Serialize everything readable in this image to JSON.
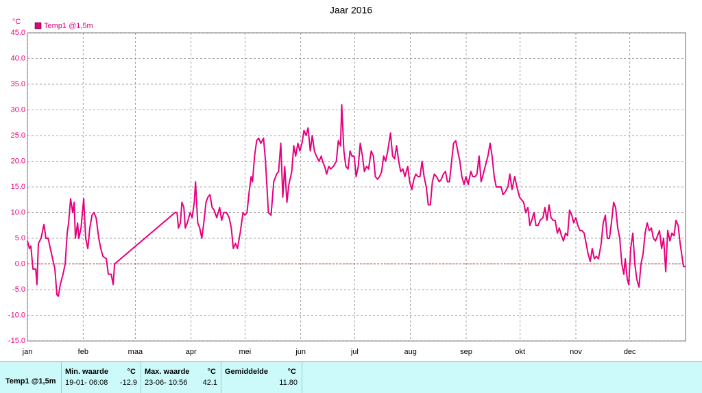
{
  "chart_data": {
    "type": "line",
    "title": "Jaar 2016",
    "y_unit": "°C",
    "xlim": [
      0,
      366
    ],
    "ylim": [
      -15,
      45
    ],
    "xticks": [
      {
        "value": 0,
        "label": "jan"
      },
      {
        "value": 31,
        "label": "feb"
      },
      {
        "value": 60,
        "label": "maa"
      },
      {
        "value": 91,
        "label": "apr"
      },
      {
        "value": 121,
        "label": "mei"
      },
      {
        "value": 152,
        "label": "jun"
      },
      {
        "value": 182,
        "label": "jul"
      },
      {
        "value": 213,
        "label": "aug"
      },
      {
        "value": 244,
        "label": "sep"
      },
      {
        "value": 274,
        "label": "okt"
      },
      {
        "value": 305,
        "label": "nov"
      },
      {
        "value": 335,
        "label": "dec"
      }
    ],
    "yticks": [
      {
        "value": -15,
        "label": "-15.0"
      },
      {
        "value": -10,
        "label": "-10.0"
      },
      {
        "value": -5,
        "label": "-5.0"
      },
      {
        "value": 0,
        "label": "0.0"
      },
      {
        "value": 5,
        "label": "5.0"
      },
      {
        "value": 10,
        "label": "10.0"
      },
      {
        "value": 15,
        "label": "15.0"
      },
      {
        "value": 20,
        "label": "20.0"
      },
      {
        "value": 25,
        "label": "25.0"
      },
      {
        "value": 30,
        "label": "30.0"
      },
      {
        "value": 35,
        "label": "35.0"
      },
      {
        "value": 40,
        "label": "40.0"
      },
      {
        "value": 45,
        "label": "45.0"
      }
    ],
    "grid": true,
    "reference_line": {
      "value": 0,
      "color": "#cc0000"
    },
    "x": [
      0,
      1.1,
      1.9,
      3.1,
      4.6,
      5.3,
      6.1,
      7.6,
      9.2,
      10.3,
      11.5,
      13.4,
      15.3,
      16.4,
      17.2,
      18.3,
      19.8,
      21.0,
      22.1,
      22.9,
      24.0,
      25.2,
      26.0,
      26.7,
      27.9,
      28.6,
      29.8,
      31.3,
      32.4,
      33.6,
      34.7,
      35.9,
      37.0,
      38.2,
      39.7,
      40.8,
      42.0,
      43.9,
      45.0,
      46.6,
      47.7,
      48.5,
      82.1,
      83.2,
      84.0,
      85.1,
      85.9,
      87.0,
      87.8,
      88.9,
      90.5,
      91.6,
      92.8,
      93.5,
      94.7,
      95.8,
      97.0,
      98.1,
      99.3,
      100.4,
      101.5,
      102.7,
      103.8,
      105.3,
      106.9,
      108.0,
      109.2,
      110.7,
      112.2,
      113.4,
      114.5,
      115.7,
      116.8,
      118.3,
      119.9,
      121.0,
      122.1,
      123.3,
      124.4,
      125.2,
      126.3,
      127.5,
      128.6,
      129.8,
      131.3,
      132.4,
      134.0,
      135.5,
      137.0,
      138.6,
      139.7,
      140.9,
      142.0,
      143.1,
      144.3,
      145.4,
      147.0,
      148.1,
      149.2,
      150.4,
      151.5,
      152.7,
      153.8,
      155.0,
      156.1,
      157.3,
      158.4,
      159.6,
      160.7,
      162.2,
      163.4,
      164.1,
      165.3,
      166.4,
      167.6,
      168.7,
      170.2,
      171.8,
      172.9,
      174.1,
      174.8,
      176.0,
      177.1,
      178.3,
      179.4,
      180.5,
      181.7,
      182.8,
      184.0,
      185.1,
      186.3,
      187.4,
      188.6,
      189.7,
      191.2,
      192.4,
      193.5,
      194.7,
      195.8,
      197.0,
      198.1,
      199.2,
      200.4,
      201.9,
      203.1,
      204.2,
      205.3,
      206.5,
      207.6,
      208.8,
      209.9,
      211.5,
      212.6,
      213.8,
      214.9,
      216.0,
      217.2,
      218.3,
      219.5,
      220.6,
      221.8,
      222.9,
      224.1,
      225.2,
      226.3,
      227.5,
      229.0,
      230.2,
      231.3,
      232.5,
      233.6,
      234.7,
      235.9,
      237.0,
      238.2,
      239.3,
      240.5,
      241.6,
      242.8,
      243.9,
      245.1,
      246.6,
      247.7,
      248.9,
      250.0,
      251.2,
      252.3,
      253.5,
      254.6,
      256.1,
      257.3,
      258.4,
      259.6,
      260.7,
      262.2,
      263.4,
      264.5,
      265.7,
      267.2,
      268.3,
      269.5,
      271.0,
      272.2,
      273.7,
      274.8,
      276.0,
      277.1,
      278.3,
      279.4,
      280.5,
      281.7,
      282.8,
      284.0,
      285.1,
      286.7,
      287.8,
      288.9,
      290.1,
      291.2,
      292.4,
      293.5,
      294.7,
      295.8,
      297.0,
      298.1,
      299.3,
      300.4,
      301.5,
      302.7,
      303.8,
      305.0,
      306.1,
      307.3,
      308.4,
      309.6,
      310.7,
      311.8,
      313.0,
      314.1,
      315.3,
      316.4,
      317.6,
      319.1,
      320.2,
      321.4,
      322.5,
      323.7,
      324.8,
      326.0,
      327.1,
      328.3,
      329.4,
      330.6,
      331.7,
      332.5,
      333.6,
      334.4,
      335.5,
      336.7,
      337.8,
      338.9,
      340.1,
      341.2,
      342.4,
      343.5,
      344.7,
      345.8,
      347.0,
      348.1,
      349.3,
      350.4,
      351.5,
      352.7,
      353.8,
      355.0,
      356.1,
      357.3,
      358.4,
      359.6,
      360.7,
      361.9,
      363.0,
      364.2,
      364.9,
      366
    ],
    "series": [
      {
        "name": "Temp1 @1,5m",
        "color": "#e6007e",
        "values": [
          4.5,
          3,
          3.5,
          -1,
          -1,
          -4,
          4,
          5,
          7.7,
          5,
          5,
          2,
          -1,
          -6,
          -6.3,
          -4,
          -2,
          0,
          6,
          8,
          12.7,
          10,
          12,
          5,
          8,
          5,
          7,
          12.7,
          5,
          3,
          7,
          9.5,
          10,
          9,
          5,
          3,
          1.5,
          1,
          -2,
          -2,
          -4,
          0,
          10,
          10,
          7,
          8,
          12,
          11,
          7,
          8,
          10,
          9,
          12,
          16,
          8,
          7,
          5,
          8,
          12,
          13,
          13.5,
          11,
          10.5,
          9,
          11,
          8.5,
          10,
          10,
          9,
          7,
          3,
          4,
          3,
          6,
          10,
          9.5,
          10,
          14,
          17,
          16,
          21,
          24,
          24.5,
          23.5,
          24.5,
          20,
          10,
          9.5,
          16,
          17.5,
          18,
          23.5,
          13,
          19,
          12,
          15.5,
          18,
          23,
          21,
          23.5,
          22,
          23.5,
          26,
          25,
          26.5,
          22,
          25,
          22,
          21,
          20,
          21,
          20,
          19,
          17.5,
          19,
          18.5,
          19,
          20,
          24,
          23,
          31,
          22,
          19,
          18.5,
          22,
          21,
          21,
          17,
          19,
          23.5,
          21,
          18,
          19,
          18.5,
          22,
          21,
          17,
          16.5,
          17,
          18,
          21,
          20,
          22,
          25.5,
          21,
          20.5,
          23,
          20,
          18,
          18.5,
          17,
          19,
          16,
          14.5,
          16.5,
          17.5,
          17,
          17,
          20,
          17,
          15,
          11.5,
          11.5,
          16,
          17.5,
          17,
          16,
          16.5,
          17.5,
          18,
          16,
          16,
          20,
          23.5,
          24,
          22,
          20,
          17,
          15.5,
          17,
          15.5,
          18,
          17,
          17,
          17.5,
          21,
          16,
          17.5,
          19,
          21,
          23.5,
          21,
          17,
          15,
          15,
          15,
          13.5,
          14,
          15,
          17.5,
          14.5,
          17,
          15,
          13,
          12.5,
          12,
          10,
          11,
          7.5,
          8.5,
          10,
          7.5,
          7.5,
          8.5,
          9,
          11,
          8.5,
          11.5,
          9,
          8.5,
          8.5,
          6,
          7,
          5.5,
          4.5,
          6,
          5.5,
          10.5,
          9.5,
          8,
          9,
          7.5,
          6.5,
          6.5,
          6,
          4,
          2,
          0.5,
          3,
          1,
          1.5,
          1,
          4,
          8,
          9.5,
          5,
          5,
          8,
          12,
          11,
          7,
          5,
          0,
          -2,
          1,
          -3,
          -4,
          3,
          6,
          0,
          -3,
          -4.5,
          0,
          2,
          6,
          8,
          6.5,
          7,
          5,
          4.5,
          5.5,
          6.5,
          3,
          5,
          -1.5,
          6.5,
          4.5,
          6,
          5.5,
          8.5,
          7.5,
          4,
          1,
          -0.5,
          -0.5
        ]
      }
    ]
  },
  "table": {
    "row_label": "Temp1 @1,5m",
    "columns": [
      {
        "header": "Min. waarde",
        "unit": "°C",
        "time": "19-01- 06:08",
        "value": "-12.9"
      },
      {
        "header": "Max. waarde",
        "unit": "°C",
        "time": "23-06- 10:56",
        "value": "42.1"
      },
      {
        "header": "Gemiddelde",
        "unit": "°C",
        "value": "11.80"
      }
    ]
  }
}
